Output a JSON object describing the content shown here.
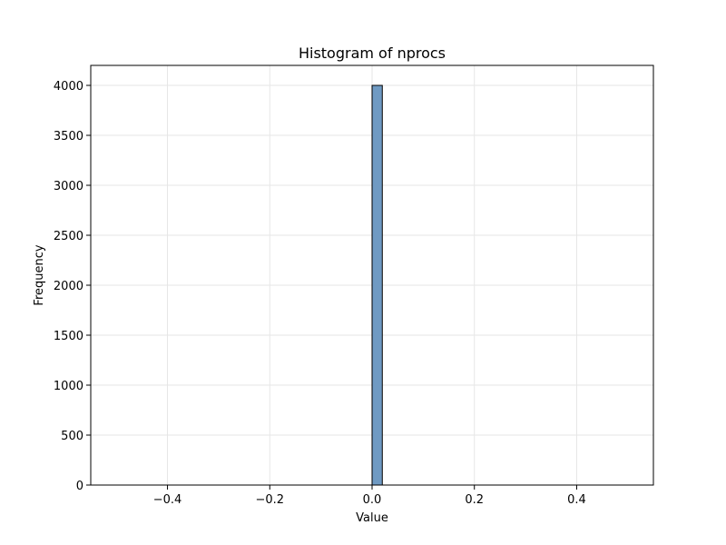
{
  "chart_data": {
    "type": "bar",
    "title": "Histogram of nprocs",
    "xlabel": "Value",
    "ylabel": "Frequency",
    "xlim": [
      -0.55,
      0.55
    ],
    "ylim": [
      0,
      4200
    ],
    "xticks": [
      -0.4,
      -0.2,
      0.0,
      0.2,
      0.4
    ],
    "xtick_labels": [
      "−0.4",
      "−0.2",
      "0.0",
      "0.2",
      "0.4"
    ],
    "yticks": [
      0,
      500,
      1000,
      1500,
      2000,
      2500,
      3000,
      3500,
      4000
    ],
    "ytick_labels": [
      "0",
      "500",
      "1000",
      "1500",
      "2000",
      "2500",
      "3000",
      "3500",
      "4000"
    ],
    "bins": [
      {
        "x_start": 0.0,
        "x_end": 0.02,
        "value": 4000
      }
    ],
    "grid": true,
    "colors": {
      "bar_fill": "#6f9ac3",
      "bar_edge": "#000000",
      "grid": "#e6e6e6"
    }
  }
}
